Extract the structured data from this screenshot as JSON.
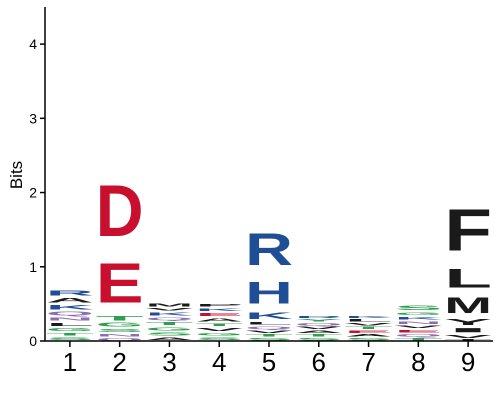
{
  "chart_data": {
    "type": "sequence-logo",
    "ylabel": "Bits",
    "ylim": [
      0,
      4.5
    ],
    "y_ticks": [
      "0",
      "1",
      "2",
      "3",
      "4"
    ],
    "positions": [
      "1",
      "2",
      "3",
      "4",
      "5",
      "6",
      "7",
      "8",
      "9"
    ],
    "colors": {
      "acidic": "#c8102e",
      "basic": "#1f4e96",
      "hydrophobic": "#1a1a1a",
      "polar": "#2e9e4f",
      "other": "#8a6fb0"
    },
    "stacks": [
      [
        {
          "letter": "S",
          "bits": 0.06,
          "class": "polar"
        },
        {
          "letter": "T",
          "bits": 0.06,
          "class": "polar"
        },
        {
          "letter": "G",
          "bits": 0.07,
          "class": "polar"
        },
        {
          "letter": "L",
          "bits": 0.07,
          "class": "hydrophobic"
        },
        {
          "letter": "N",
          "bits": 0.07,
          "class": "other"
        },
        {
          "letter": "Q",
          "bits": 0.08,
          "class": "other"
        },
        {
          "letter": "K",
          "bits": 0.09,
          "class": "basic"
        },
        {
          "letter": "A",
          "bits": 0.09,
          "class": "hydrophobic"
        },
        {
          "letter": "R",
          "bits": 0.11,
          "class": "basic"
        }
      ],
      [
        {
          "letter": "Q",
          "bits": 0.05,
          "class": "other"
        },
        {
          "letter": "N",
          "bits": 0.06,
          "class": "other"
        },
        {
          "letter": "S",
          "bits": 0.07,
          "class": "polar"
        },
        {
          "letter": "G",
          "bits": 0.08,
          "class": "polar"
        },
        {
          "letter": "T",
          "bits": 0.09,
          "class": "polar"
        },
        {
          "letter": "E",
          "bits": 0.85,
          "class": "acidic"
        },
        {
          "letter": "D",
          "bits": 1.1,
          "class": "acidic"
        }
      ],
      [
        {
          "letter": "A",
          "bits": 0.06,
          "class": "hydrophobic"
        },
        {
          "letter": "S",
          "bits": 0.07,
          "class": "polar"
        },
        {
          "letter": "G",
          "bits": 0.07,
          "class": "polar"
        },
        {
          "letter": "T",
          "bits": 0.07,
          "class": "polar"
        },
        {
          "letter": "Q",
          "bits": 0.06,
          "class": "other"
        },
        {
          "letter": "K",
          "bits": 0.07,
          "class": "basic"
        },
        {
          "letter": "V",
          "bits": 0.05,
          "class": "hydrophobic"
        },
        {
          "letter": "M",
          "bits": 0.07,
          "class": "hydrophobic"
        }
      ],
      [
        {
          "letter": "S",
          "bits": 0.06,
          "class": "polar"
        },
        {
          "letter": "G",
          "bits": 0.06,
          "class": "polar"
        },
        {
          "letter": "V",
          "bits": 0.07,
          "class": "hydrophobic"
        },
        {
          "letter": "T",
          "bits": 0.06,
          "class": "polar"
        },
        {
          "letter": "A",
          "bits": 0.07,
          "class": "hydrophobic"
        },
        {
          "letter": "E",
          "bits": 0.07,
          "class": "acidic"
        },
        {
          "letter": "K",
          "bits": 0.06,
          "class": "basic"
        },
        {
          "letter": "P",
          "bits": 0.06,
          "class": "hydrophobic"
        }
      ],
      [
        {
          "letter": "S",
          "bits": 0.05,
          "class": "polar"
        },
        {
          "letter": "T",
          "bits": 0.05,
          "class": "polar"
        },
        {
          "letter": "V",
          "bits": 0.05,
          "class": "hydrophobic"
        },
        {
          "letter": "Q",
          "bits": 0.06,
          "class": "other"
        },
        {
          "letter": "L",
          "bits": 0.06,
          "class": "hydrophobic"
        },
        {
          "letter": "K",
          "bits": 0.14,
          "class": "basic"
        },
        {
          "letter": "H",
          "bits": 0.48,
          "class": "basic"
        },
        {
          "letter": "R",
          "bits": 0.68,
          "class": "basic"
        }
      ],
      [
        {
          "letter": "S",
          "bits": 0.05,
          "class": "polar"
        },
        {
          "letter": "T",
          "bits": 0.05,
          "class": "polar"
        },
        {
          "letter": "A",
          "bits": 0.05,
          "class": "hydrophobic"
        },
        {
          "letter": "V",
          "bits": 0.05,
          "class": "hydrophobic"
        },
        {
          "letter": "Q",
          "bits": 0.05,
          "class": "other"
        },
        {
          "letter": "Y",
          "bits": 0.05,
          "class": "polar"
        },
        {
          "letter": "R",
          "bits": 0.04,
          "class": "basic"
        }
      ],
      [
        {
          "letter": "S",
          "bits": 0.05,
          "class": "polar"
        },
        {
          "letter": "A",
          "bits": 0.05,
          "class": "hydrophobic"
        },
        {
          "letter": "E",
          "bits": 0.05,
          "class": "acidic"
        },
        {
          "letter": "T",
          "bits": 0.05,
          "class": "polar"
        },
        {
          "letter": "V",
          "bits": 0.05,
          "class": "hydrophobic"
        },
        {
          "letter": "L",
          "bits": 0.05,
          "class": "hydrophobic"
        },
        {
          "letter": "K",
          "bits": 0.04,
          "class": "basic"
        }
      ],
      [
        {
          "letter": "T",
          "bits": 0.05,
          "class": "polar"
        },
        {
          "letter": "Q",
          "bits": 0.05,
          "class": "other"
        },
        {
          "letter": "E",
          "bits": 0.06,
          "class": "acidic"
        },
        {
          "letter": "V",
          "bits": 0.06,
          "class": "hydrophobic"
        },
        {
          "letter": "N",
          "bits": 0.06,
          "class": "other"
        },
        {
          "letter": "K",
          "bits": 0.06,
          "class": "basic"
        },
        {
          "letter": "G",
          "bits": 0.06,
          "class": "polar"
        },
        {
          "letter": "S",
          "bits": 0.1,
          "class": "polar"
        }
      ],
      [
        {
          "letter": "T",
          "bits": 0.03,
          "class": "hydrophobic"
        },
        {
          "letter": "V",
          "bits": 0.07,
          "class": "hydrophobic"
        },
        {
          "letter": "I",
          "bits": 0.09,
          "class": "hydrophobic"
        },
        {
          "letter": "Y",
          "bits": 0.12,
          "class": "hydrophobic"
        },
        {
          "letter": "M",
          "bits": 0.33,
          "class": "hydrophobic"
        },
        {
          "letter": "L",
          "bits": 0.4,
          "class": "hydrophobic"
        },
        {
          "letter": "F",
          "bits": 0.9,
          "class": "hydrophobic"
        }
      ]
    ]
  }
}
